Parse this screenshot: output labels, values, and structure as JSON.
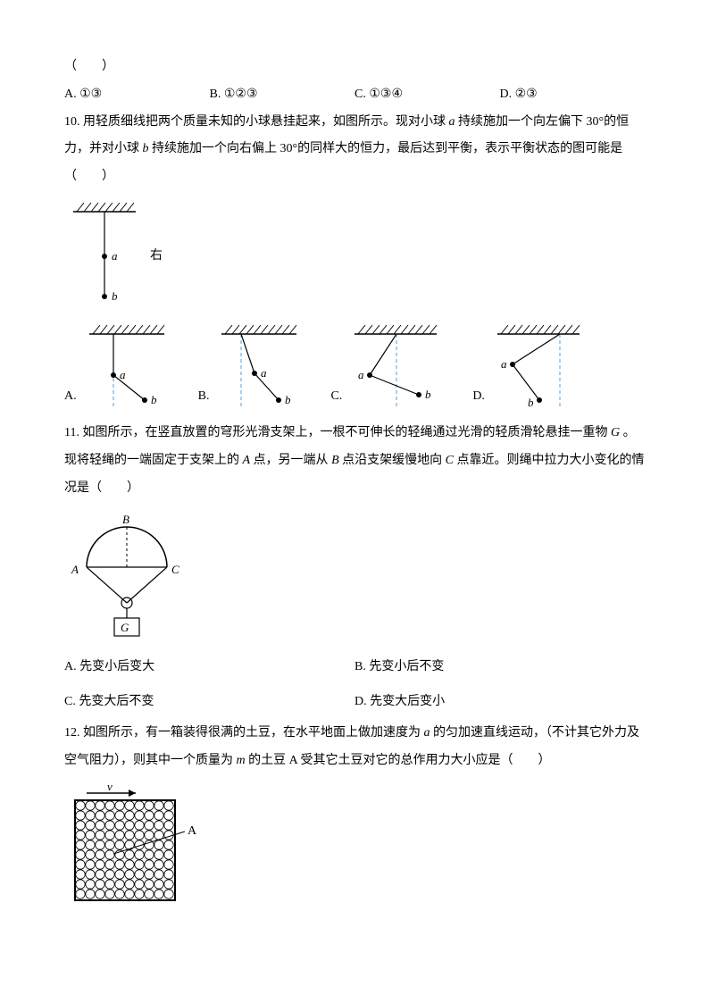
{
  "q9_tail": "（　　）",
  "q9_opts": {
    "A": "A. ①③",
    "B": "B. ①②③",
    "C": "C. ①③④",
    "D": "D. ②③"
  },
  "q10_num": "10. ",
  "q10_text_1": "用轻质细线把两个质量未知的小球悬挂起来，如图所示。现对小球",
  "q10_a": "a",
  "q10_text_2": "持续施加一个向左偏下 30°的恒力，并对小球",
  "q10_b": "b",
  "q10_text_3": "持续施加一个向右偏上 30°的同样大的恒力，最后达到平衡，表示平衡状态的图可能是（　　）",
  "q10_label_right": "右",
  "q10_opts": {
    "A": "A.",
    "B": "B.",
    "C": "C.",
    "D": "D."
  },
  "svg_labels": {
    "a": "a",
    "b": "b",
    "A": "A",
    "B": "B",
    "C": "C",
    "G": "G"
  },
  "q11_num": "11. ",
  "q11_text_1": "如图所示，在竖直放置的穹形光滑支架上，一根不可伸长的轻绳通过光滑的轻质滑轮悬挂一重物",
  "q11_G": "G",
  "q11_text_2": "。现将轻绳的一端固定于支架上的",
  "q11_A": "A",
  "q11_text_3": "点，另一端从",
  "q11_B": "B",
  "q11_text_4": "点沿支架缓慢地向",
  "q11_C": "C",
  "q11_text_5": "点靠近。则绳中拉力大小变化的情况是（　　）",
  "q11_opts": {
    "A": "A. 先变小后变大",
    "B": "B. 先变小后不变",
    "C": "C. 先变大后不变",
    "D": "D. 先变大后变小"
  },
  "q12_num": "12. ",
  "q12_text_1": "如图所示，有一箱装得很满的土豆，在水平地面上做加速度为",
  "q12_a": "a",
  "q12_text_2": "的匀加速直线运动，（不计其它外力及空气阻力），则其中一个质量为",
  "q12_m": "m",
  "q12_text_3": " 的土豆 A 受其它土豆对它的总作用力大小应是（　　）",
  "q12_v": "v",
  "q12_Alabel": "A",
  "colors": {
    "line": "#000000",
    "dash": "#4aa3e0",
    "hatch": "#000000"
  }
}
